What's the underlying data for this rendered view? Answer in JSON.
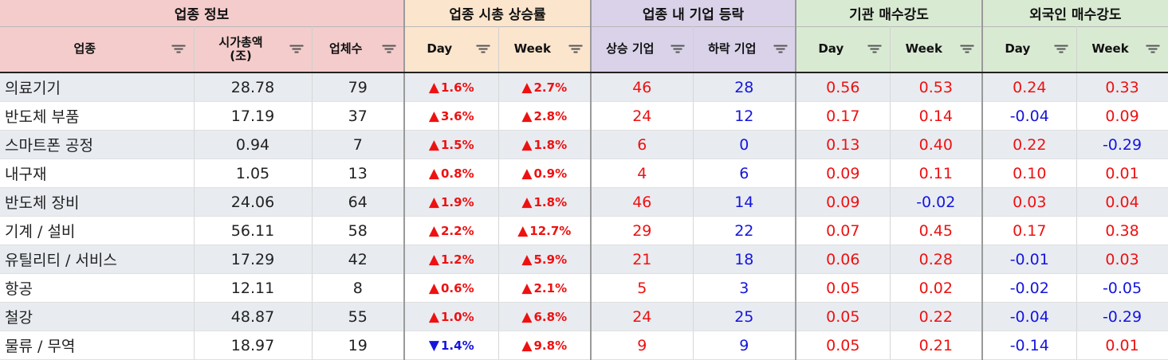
{
  "groups": [
    {
      "label": "업종 정보",
      "span": 3,
      "cls": "g1"
    },
    {
      "label": "업종 시총 상승률",
      "span": 2,
      "cls": "g2"
    },
    {
      "label": "업종 내 기업 등락",
      "span": 2,
      "cls": "g3"
    },
    {
      "label": "기관 매수강도",
      "span": 2,
      "cls": "g4"
    },
    {
      "label": "외국인 매수강도",
      "span": 2,
      "cls": "g5"
    }
  ],
  "columns": [
    {
      "label": "업종",
      "cls": "g1"
    },
    {
      "label": "시가총액\n(조)",
      "cls": "g1"
    },
    {
      "label": "업체수",
      "cls": "g1"
    },
    {
      "label": "Day",
      "cls": "g2"
    },
    {
      "label": "Week",
      "cls": "g2"
    },
    {
      "label": "상승 기업",
      "cls": "g3"
    },
    {
      "label": "하락 기업",
      "cls": "g3"
    },
    {
      "label": "Day",
      "cls": "g4"
    },
    {
      "label": "Week",
      "cls": "g4"
    },
    {
      "label": "Day",
      "cls": "g5"
    },
    {
      "label": "Week",
      "cls": "g5"
    }
  ],
  "colors": {
    "up": "#ee1111",
    "down": "#1515dd"
  },
  "rows": [
    {
      "sector": "의료기기",
      "cap": "28.78",
      "count": "79",
      "day": "1.6%",
      "day_dir": "up",
      "week": "2.7%",
      "week_dir": "up",
      "rise": "46",
      "fall": "28",
      "inst_day": "0.56",
      "inst_week": "0.53",
      "for_day": "0.24",
      "for_week": "0.33"
    },
    {
      "sector": "반도체 부품",
      "cap": "17.19",
      "count": "37",
      "day": "3.6%",
      "day_dir": "up",
      "week": "2.8%",
      "week_dir": "up",
      "rise": "24",
      "fall": "12",
      "inst_day": "0.17",
      "inst_week": "0.14",
      "for_day": "-0.04",
      "for_week": "0.09"
    },
    {
      "sector": "스마트폰 공정",
      "cap": "0.94",
      "count": "7",
      "day": "1.5%",
      "day_dir": "up",
      "week": "1.8%",
      "week_dir": "up",
      "rise": "6",
      "fall": "0",
      "inst_day": "0.13",
      "inst_week": "0.40",
      "for_day": "0.22",
      "for_week": "-0.29"
    },
    {
      "sector": "내구재",
      "cap": "1.05",
      "count": "13",
      "day": "0.8%",
      "day_dir": "up",
      "week": "0.9%",
      "week_dir": "up",
      "rise": "4",
      "fall": "6",
      "inst_day": "0.09",
      "inst_week": "0.11",
      "for_day": "0.10",
      "for_week": "0.01"
    },
    {
      "sector": "반도체 장비",
      "cap": "24.06",
      "count": "64",
      "day": "1.9%",
      "day_dir": "up",
      "week": "1.8%",
      "week_dir": "up",
      "rise": "46",
      "fall": "14",
      "inst_day": "0.09",
      "inst_week": "-0.02",
      "for_day": "0.03",
      "for_week": "0.04"
    },
    {
      "sector": "기계 / 설비",
      "cap": "56.11",
      "count": "58",
      "day": "2.2%",
      "day_dir": "up",
      "week": "12.7%",
      "week_dir": "up",
      "rise": "29",
      "fall": "22",
      "inst_day": "0.07",
      "inst_week": "0.45",
      "for_day": "0.17",
      "for_week": "0.38"
    },
    {
      "sector": "유틸리티 / 서비스",
      "cap": "17.29",
      "count": "42",
      "day": "1.2%",
      "day_dir": "up",
      "week": "5.9%",
      "week_dir": "up",
      "rise": "21",
      "fall": "18",
      "inst_day": "0.06",
      "inst_week": "0.28",
      "for_day": "-0.01",
      "for_week": "0.03"
    },
    {
      "sector": "항공",
      "cap": "12.11",
      "count": "8",
      "day": "0.6%",
      "day_dir": "up",
      "week": "2.1%",
      "week_dir": "up",
      "rise": "5",
      "fall": "3",
      "inst_day": "0.05",
      "inst_week": "0.02",
      "for_day": "-0.02",
      "for_week": "-0.05"
    },
    {
      "sector": "철강",
      "cap": "48.87",
      "count": "55",
      "day": "1.0%",
      "day_dir": "up",
      "week": "6.8%",
      "week_dir": "up",
      "rise": "24",
      "fall": "25",
      "inst_day": "0.05",
      "inst_week": "0.22",
      "for_day": "-0.04",
      "for_week": "-0.29"
    },
    {
      "sector": "물류 / 무역",
      "cap": "18.97",
      "count": "19",
      "day": "1.4%",
      "day_dir": "down",
      "week": "9.8%",
      "week_dir": "up",
      "rise": "9",
      "fall": "9",
      "inst_day": "0.05",
      "inst_week": "0.21",
      "for_day": "-0.14",
      "for_week": "0.01"
    }
  ]
}
